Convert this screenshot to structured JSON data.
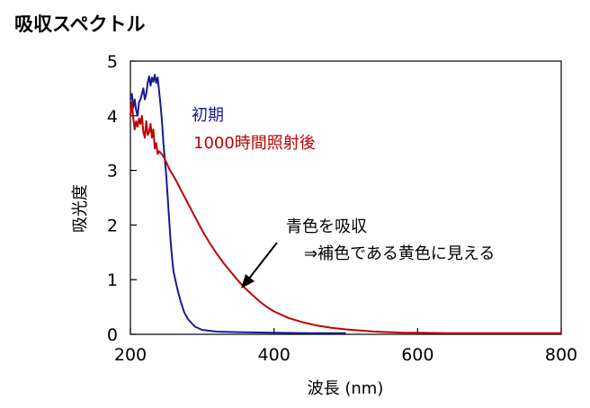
{
  "colors": {
    "initial": "#1a1a8c",
    "after": "#c00000",
    "axis": "#000000"
  },
  "chart_data": {
    "type": "line",
    "title": "吸収スペクトル",
    "xlabel": "波長 (nm)",
    "ylabel": "吸光度",
    "xlim": [
      200,
      800
    ],
    "ylim": [
      0,
      5
    ],
    "xticks": [
      200,
      400,
      600,
      800
    ],
    "yticks": [
      0,
      1,
      2,
      3,
      4,
      5
    ],
    "grid": false,
    "series": [
      {
        "name": "初期",
        "color": "#1a1a8c",
        "x": [
          200,
          202,
          204,
          206,
          208,
          210,
          212,
          214,
          216,
          218,
          220,
          222,
          224,
          226,
          228,
          230,
          232,
          234,
          236,
          238,
          240,
          242,
          244,
          246,
          248,
          250,
          252,
          254,
          256,
          258,
          260,
          265,
          270,
          275,
          280,
          290,
          300,
          320,
          350,
          400,
          450,
          500
        ],
        "y": [
          4.3,
          4.4,
          4.15,
          4.3,
          4.1,
          4.0,
          4.25,
          4.3,
          4.4,
          4.5,
          4.3,
          4.4,
          4.6,
          4.72,
          4.55,
          4.7,
          4.62,
          4.75,
          4.6,
          4.7,
          4.45,
          4.2,
          3.9,
          3.5,
          3.2,
          2.9,
          2.5,
          2.1,
          1.7,
          1.4,
          1.15,
          0.85,
          0.6,
          0.4,
          0.28,
          0.14,
          0.08,
          0.05,
          0.04,
          0.03,
          0.02,
          0.02
        ]
      },
      {
        "name": "1000時間照射後",
        "color": "#c00000",
        "x": [
          200,
          202,
          204,
          206,
          208,
          210,
          212,
          214,
          216,
          218,
          220,
          222,
          224,
          226,
          228,
          230,
          232,
          234,
          236,
          238,
          240,
          245,
          250,
          255,
          260,
          265,
          270,
          280,
          290,
          300,
          310,
          320,
          330,
          340,
          350,
          360,
          370,
          380,
          390,
          400,
          420,
          440,
          460,
          480,
          500,
          520,
          540,
          560,
          580,
          600,
          640,
          680,
          720,
          760,
          800
        ],
        "y": [
          4.0,
          4.25,
          3.95,
          3.75,
          3.9,
          3.8,
          3.95,
          3.85,
          4.0,
          3.7,
          3.6,
          3.9,
          3.65,
          3.7,
          3.85,
          3.6,
          3.75,
          3.4,
          3.5,
          3.3,
          3.35,
          3.28,
          3.15,
          3.0,
          2.9,
          2.78,
          2.65,
          2.4,
          2.15,
          1.9,
          1.68,
          1.48,
          1.3,
          1.14,
          0.98,
          0.84,
          0.72,
          0.6,
          0.5,
          0.42,
          0.3,
          0.22,
          0.16,
          0.12,
          0.09,
          0.07,
          0.05,
          0.04,
          0.03,
          0.03,
          0.02,
          0.02,
          0.02,
          0.02,
          0.02
        ]
      }
    ],
    "legend": [
      "初期",
      "1000時間照射後"
    ],
    "annotation": {
      "lines": [
        "青色を吸収",
        "⇒補色である黄色に見える"
      ],
      "arrow_to": [
        355,
        0.85
      ]
    }
  }
}
